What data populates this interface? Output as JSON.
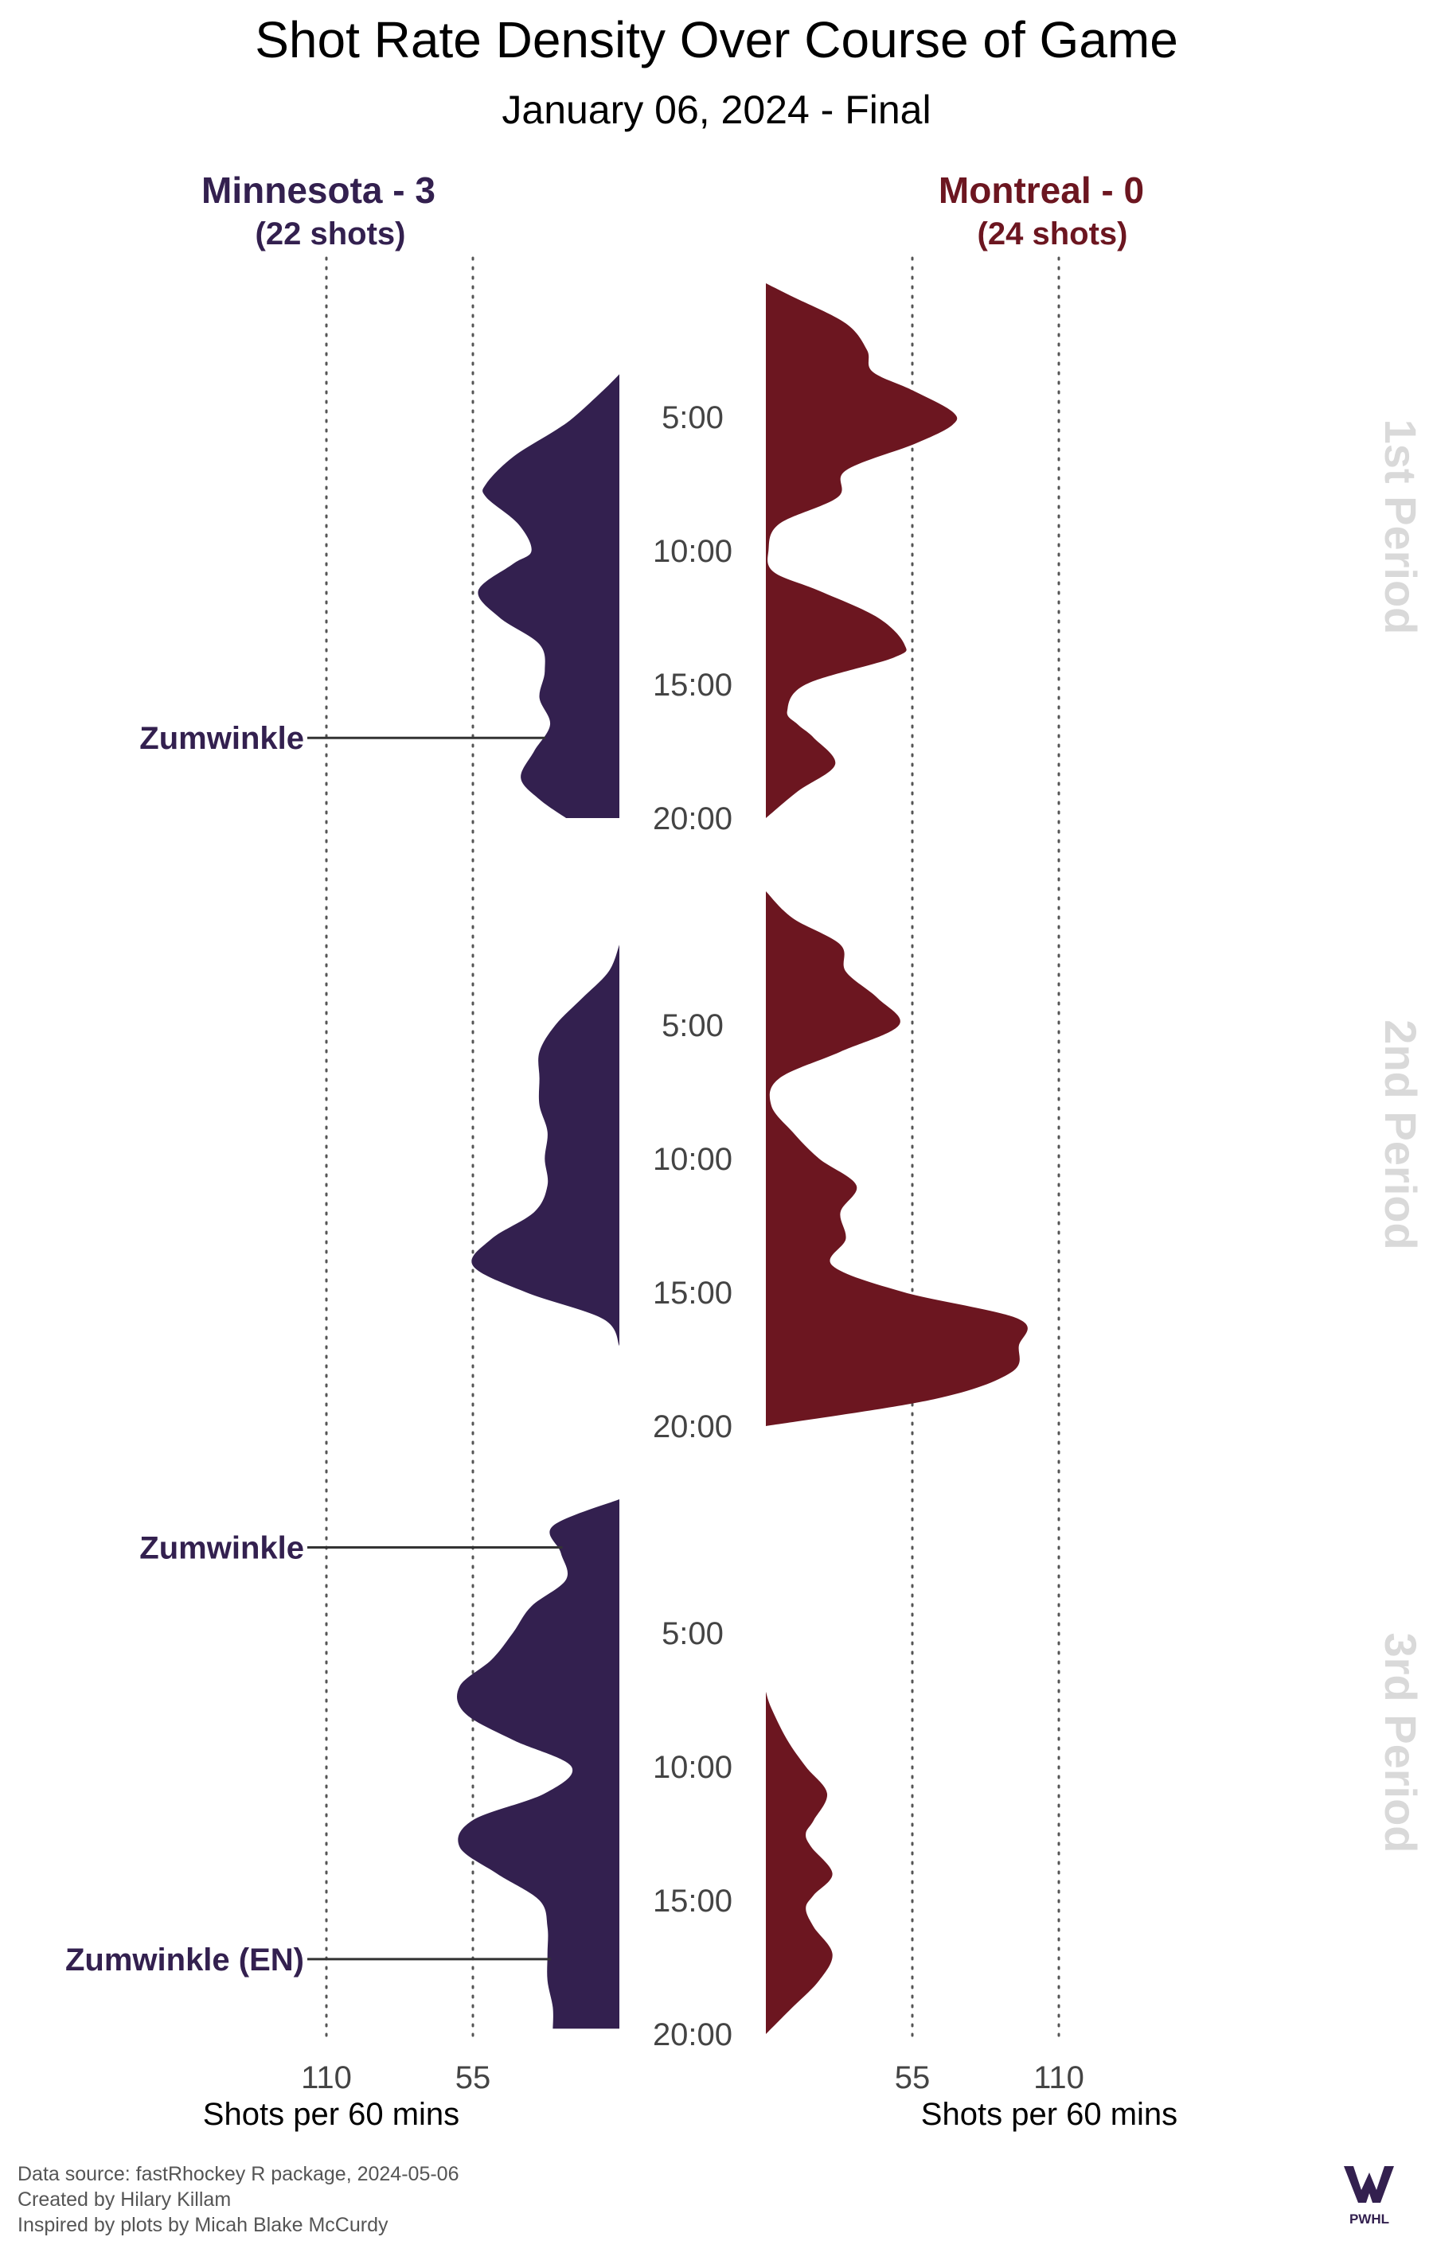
{
  "chart_data": {
    "type": "area",
    "title": "Shot Rate Density Over Course of Game",
    "subtitle": "January 06, 2024 - Final",
    "x_axis_label": "Shots per 60 mins",
    "x_ticks_left": [
      "110",
      "55"
    ],
    "x_ticks_right": [
      "55",
      "110"
    ],
    "x_tick_values": [
      110,
      55
    ],
    "time_ticks": [
      "5:00",
      "10:00",
      "15:00",
      "20:00"
    ],
    "time_tick_minutes": [
      5,
      10,
      15,
      20
    ],
    "periods": [
      "1st Period",
      "2nd Period",
      "3rd Period"
    ],
    "teams": {
      "home": {
        "name": "Minnesota - 3",
        "shots_label": "(22 shots)",
        "color": "#33204f"
      },
      "away": {
        "name": "Montreal - 0",
        "shots_label": "(24 shots)",
        "color": "#6c1620"
      }
    },
    "series": [
      {
        "team": "home",
        "period": "1st Period",
        "minute": [
          3.4,
          4.0,
          5.0,
          5.5,
          6.5,
          7.5,
          8.0,
          9.0,
          10.0,
          10.5,
          11.5,
          12.5,
          13.5,
          14.5,
          15.5,
          16.5,
          17.5,
          18.5,
          19.3,
          20.0
        ],
        "rate": [
          0,
          6,
          17,
          24,
          40,
          50,
          50,
          38,
          33,
          40,
          53,
          45,
          30,
          28,
          30,
          26,
          32,
          37,
          30,
          20
        ]
      },
      {
        "team": "away",
        "period": "1st Period",
        "minute": [
          0,
          0.5,
          1.5,
          2.5,
          3.3,
          4.0,
          4.8,
          5.3,
          6.0,
          7.0,
          8.0,
          9.0,
          10.0,
          10.8,
          11.5,
          12.5,
          13.5,
          14.0,
          15.0,
          16.0,
          16.5,
          17.0,
          18.0,
          19.0,
          20.0
        ],
        "rate": [
          0,
          10,
          30,
          38,
          40,
          55,
          70,
          70,
          56,
          30,
          27,
          5,
          1,
          3,
          20,
          42,
          52,
          48,
          15,
          8,
          12,
          18,
          26,
          12,
          0
        ]
      },
      {
        "team": "home",
        "period": "2nd Period",
        "minute": [
          2.0,
          3.0,
          4.0,
          5.0,
          6.0,
          7.0,
          8.0,
          9.0,
          10.0,
          11.0,
          12.0,
          13.0,
          14.0,
          15.0,
          16.0,
          17.0
        ],
        "rate": [
          0,
          4,
          14,
          24,
          30,
          30,
          30,
          27,
          28,
          27,
          32,
          48,
          55,
          35,
          6,
          0
        ]
      },
      {
        "team": "away",
        "period": "2nd Period",
        "minute": [
          0,
          1.0,
          2.0,
          3.0,
          4.0,
          5.0,
          6.0,
          7.0,
          8.0,
          9.0,
          10.0,
          11.0,
          12.0,
          13.0,
          14.0,
          15.0,
          16.0,
          17.0,
          18.0,
          19.0,
          20.0
        ],
        "rate": [
          0,
          10,
          28,
          30,
          42,
          50,
          28,
          5,
          2,
          10,
          20,
          34,
          28,
          30,
          25,
          52,
          95,
          95,
          92,
          63,
          0
        ]
      },
      {
        "team": "home",
        "period": "3rd Period",
        "minute": [
          0,
          1.0,
          2.0,
          3.0,
          4.0,
          5.0,
          6.0,
          7.0,
          8.0,
          9.0,
          10.0,
          11.0,
          12.0,
          13.0,
          14.0,
          15.0,
          16.0,
          17.0,
          18.0,
          19.0,
          19.8
        ],
        "rate": [
          0,
          25,
          22,
          20,
          33,
          40,
          48,
          60,
          58,
          40,
          18,
          28,
          55,
          60,
          46,
          30,
          27,
          27,
          27,
          25,
          25
        ]
      },
      {
        "team": "away",
        "period": "3rd Period",
        "minute": [
          7.2,
          7.8,
          9.0,
          10.0,
          11.0,
          12.0,
          12.5,
          13.0,
          14.0,
          14.8,
          15.3,
          16.0,
          17.0,
          18.0,
          19.0,
          20.0
        ],
        "rate": [
          0,
          2,
          8,
          15,
          23,
          18,
          15,
          17,
          25,
          18,
          15,
          18,
          25,
          20,
          10,
          0
        ]
      }
    ],
    "goals": [
      {
        "team": "home",
        "period": "1st Period",
        "minute": 17.0,
        "label": "Zumwinkle"
      },
      {
        "team": "home",
        "period": "3rd Period",
        "minute": 1.8,
        "label": "Zumwinkle"
      },
      {
        "team": "home",
        "period": "3rd Period",
        "minute": 17.2,
        "label": "Zumwinkle (EN)"
      }
    ],
    "grid": "dotted vertical lines at 55 and 110",
    "footer": [
      "Data source: fastRhockey R package, 2024-05-06",
      "Created by Hilary Killam",
      "Inspired by plots by Micah Blake McCurdy"
    ],
    "logo": {
      "text": "PWHL",
      "color": "#33204f"
    }
  }
}
